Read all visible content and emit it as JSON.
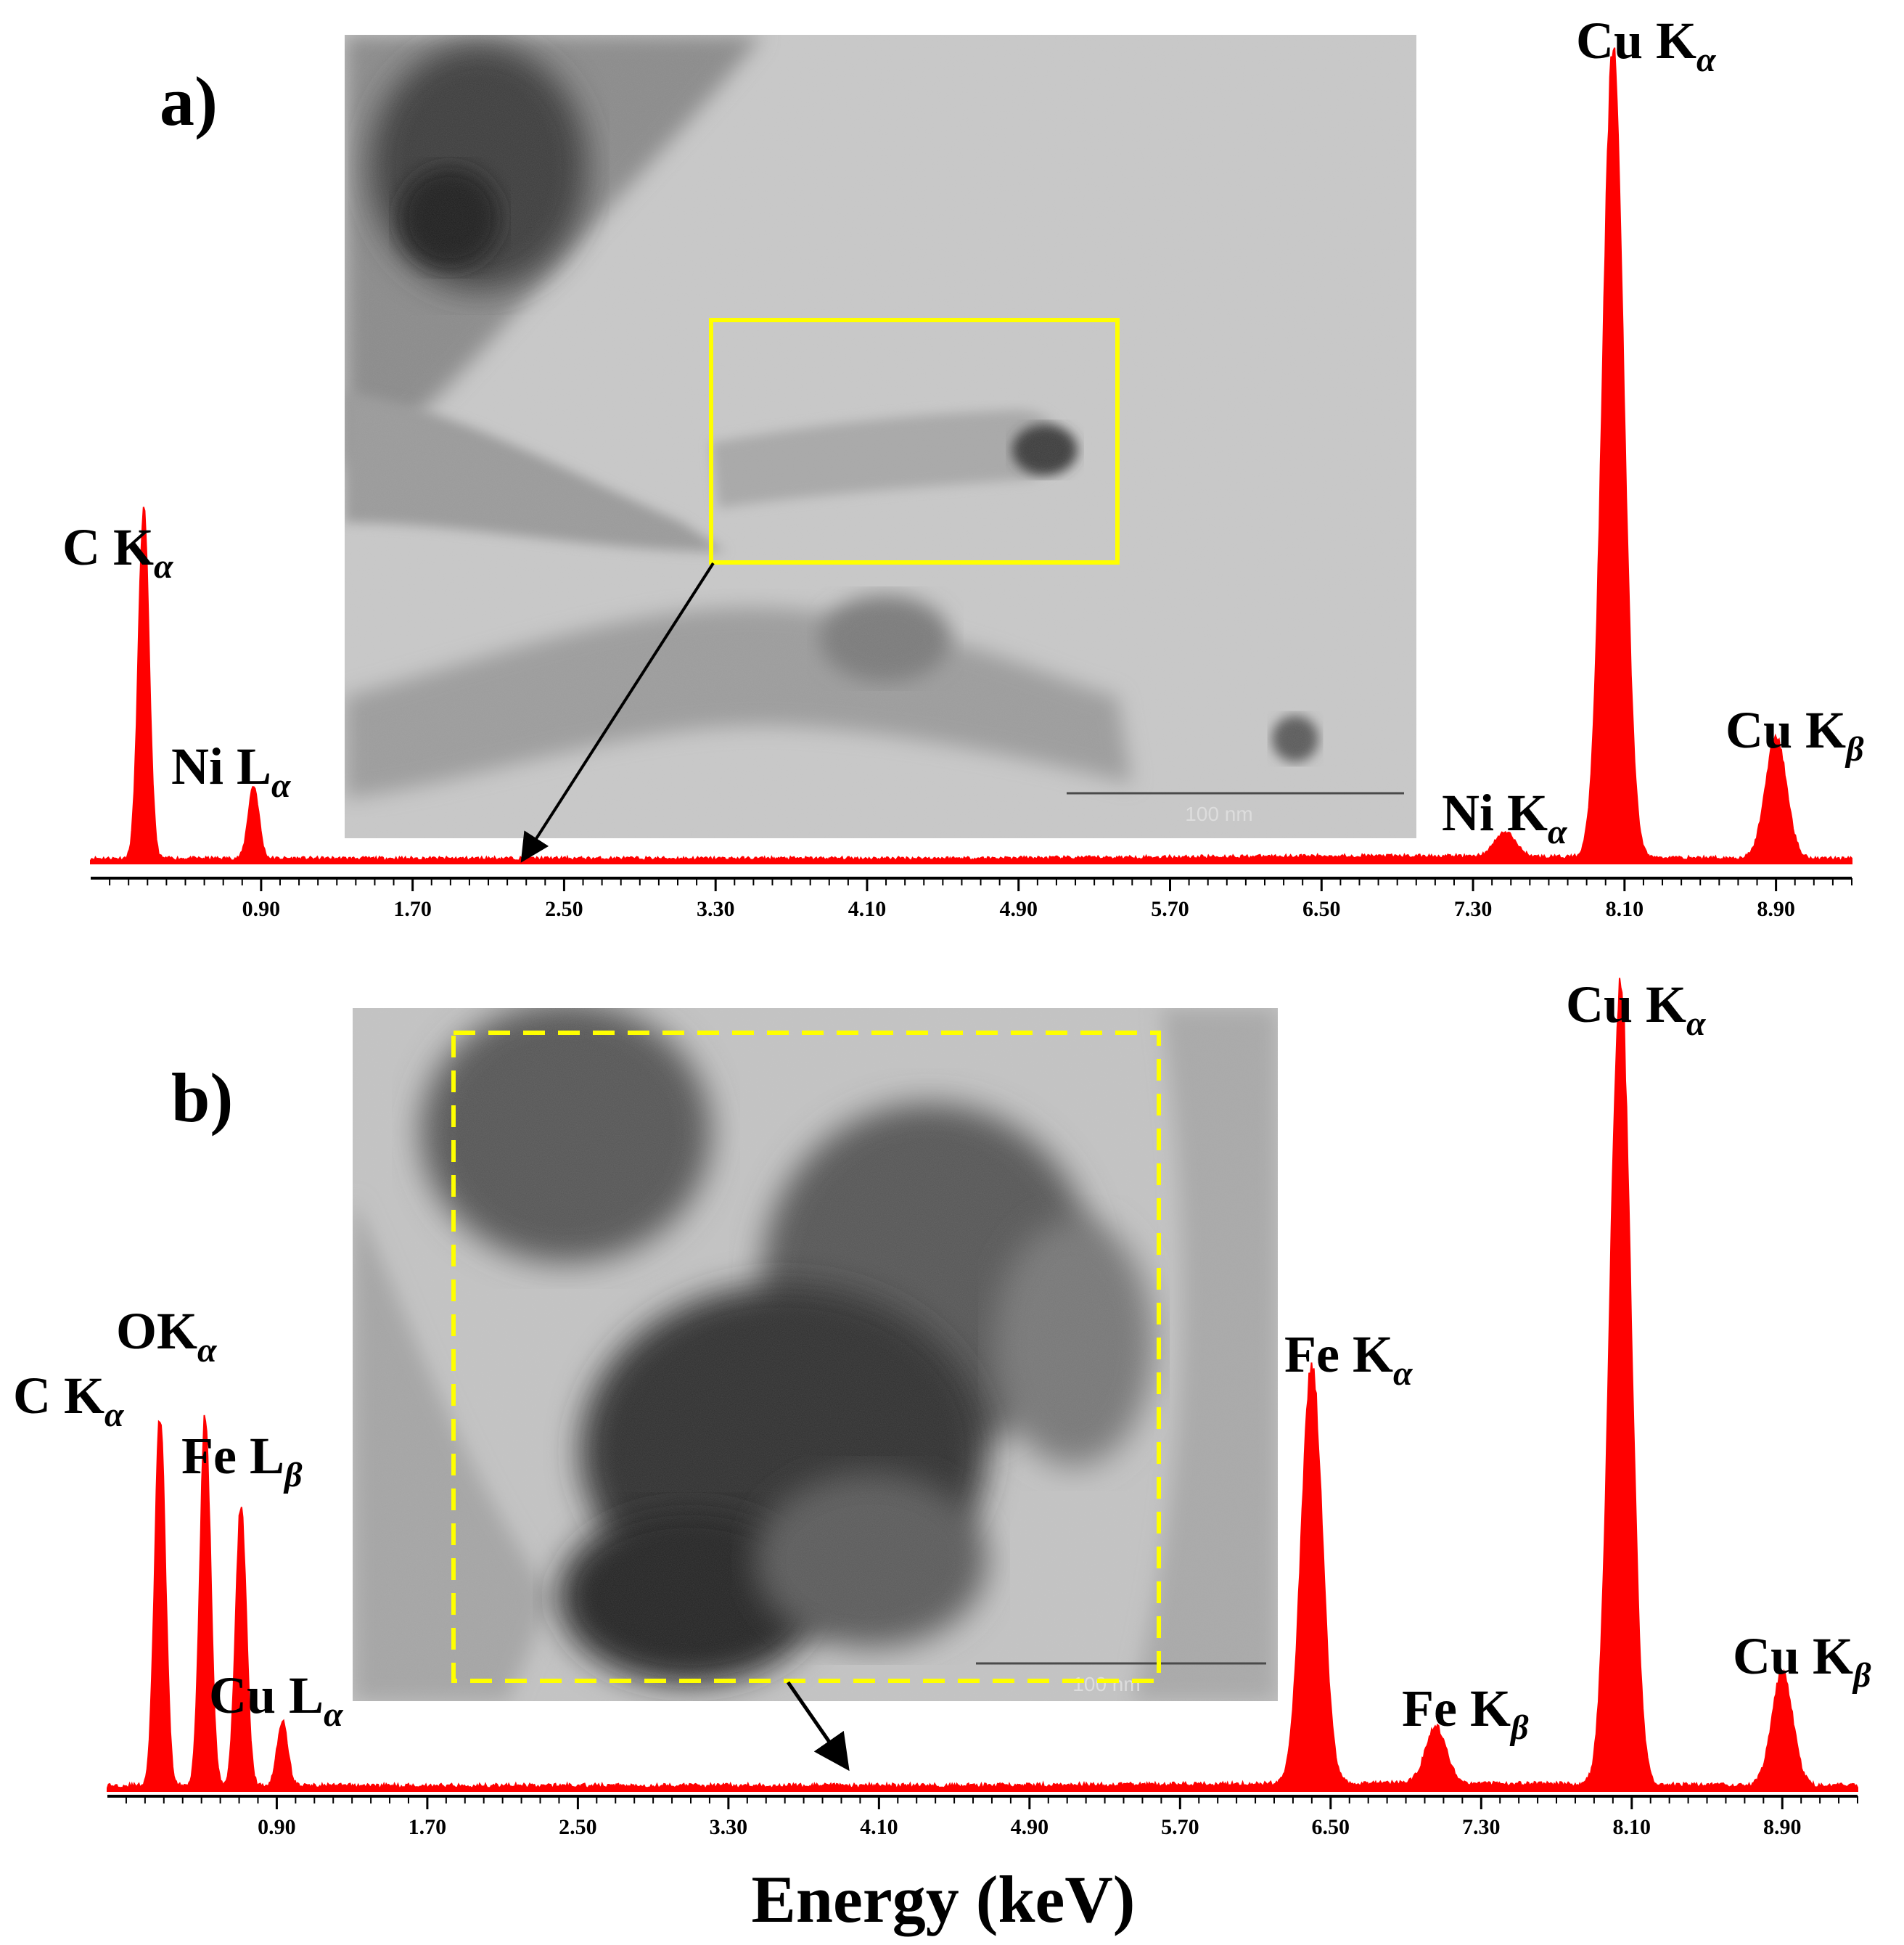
{
  "chart_data": [
    {
      "type": "area",
      "panel": "a)",
      "x_range": [
        0,
        9.3
      ],
      "x_ticks": [
        "0.90",
        "1.70",
        "2.50",
        "3.30",
        "4.10",
        "4.90",
        "5.70",
        "6.50",
        "7.30",
        "8.10",
        "8.90"
      ],
      "xlabel": "",
      "color": "#ff0000",
      "peaks": [
        {
          "element": "C K",
          "line": "α",
          "x": 0.28,
          "height": 0.43
        },
        {
          "element": "Ni L",
          "line": "α",
          "x": 0.86,
          "height": 0.09
        },
        {
          "element": "Ni K",
          "line": "α",
          "x": 7.47,
          "height": 0.03
        },
        {
          "element": "Cu K",
          "line": "α",
          "x": 8.04,
          "height": 1.0
        },
        {
          "element": "Cu K",
          "line": "β",
          "x": 8.9,
          "height": 0.15
        }
      ],
      "inset": {
        "image": "TEM micrograph with solid yellow selection box",
        "scale_bar": "100 nm"
      }
    },
    {
      "type": "area",
      "panel": "b)",
      "x_range": [
        0,
        9.3
      ],
      "x_ticks": [
        "0.90",
        "1.70",
        "2.50",
        "3.30",
        "4.10",
        "4.90",
        "5.70",
        "6.50",
        "7.30",
        "8.10",
        "8.90"
      ],
      "xlabel": "Energy (keV)",
      "color": "#ff0000",
      "peaks": [
        {
          "element": "C K",
          "line": "α",
          "x": 0.28,
          "height": 0.46
        },
        {
          "element": "OK",
          "line": "α",
          "x": 0.52,
          "height": 0.46
        },
        {
          "element": "Fe L",
          "line": "β",
          "x": 0.71,
          "height": 0.35
        },
        {
          "element": "Cu L",
          "line": "α",
          "x": 0.93,
          "height": 0.08
        },
        {
          "element": "Fe K",
          "line": "α",
          "x": 6.4,
          "height": 0.52
        },
        {
          "element": "Fe K",
          "line": "β",
          "x": 7.06,
          "height": 0.07
        },
        {
          "element": "Cu K",
          "line": "α",
          "x": 8.04,
          "height": 1.0
        },
        {
          "element": "Cu K",
          "line": "β",
          "x": 8.9,
          "height": 0.14
        }
      ],
      "inset": {
        "image": "TEM micrograph with dashed yellow selection box",
        "scale_bar": "100 nm"
      }
    }
  ]
}
